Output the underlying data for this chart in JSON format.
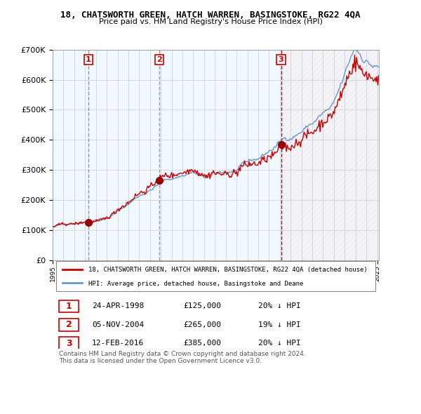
{
  "title": "18, CHATSWORTH GREEN, HATCH WARREN, BASINGSTOKE, RG22 4QA",
  "subtitle": "Price paid vs. HM Land Registry's House Price Index (HPI)",
  "xlabel": "",
  "ylabel": "",
  "ylim": [
    0,
    700000
  ],
  "yticks": [
    0,
    100000,
    200000,
    300000,
    400000,
    500000,
    600000,
    700000
  ],
  "ytick_labels": [
    "£0",
    "£100K",
    "£200K",
    "£300K",
    "£400K",
    "£500K",
    "£600K",
    "£700K"
  ],
  "sale_dates": [
    "1998-04-24",
    "2004-11-05",
    "2016-02-12"
  ],
  "sale_prices": [
    125000,
    265000,
    385000
  ],
  "sale_labels": [
    "1",
    "2",
    "3"
  ],
  "sale_info": [
    {
      "label": "1",
      "date": "24-APR-1998",
      "price": "£125,000",
      "hpi": "20% ↓ HPI"
    },
    {
      "label": "2",
      "date": "05-NOV-2004",
      "price": "£265,000",
      "hpi": "19% ↓ HPI"
    },
    {
      "label": "3",
      "date": "12-FEB-2016",
      "price": "£385,000",
      "hpi": "20% ↓ HPI"
    }
  ],
  "red_line_color": "#cc0000",
  "blue_line_color": "#6699cc",
  "sale_dot_color": "#990000",
  "vline_color_dashed": "#cc0000",
  "vline_color_gray": "#999999",
  "bg_shaded_color": "#ddeeff",
  "bg_shaded_alpha": 0.4,
  "hatch_area_color": "#aaaaaa",
  "legend_red_label": "18, CHATSWORTH GREEN, HATCH WARREN, BASINGSTOKE, RG22 4QA (detached house)",
  "legend_blue_label": "HPI: Average price, detached house, Basingstoke and Deane",
  "footer_text": "Contains HM Land Registry data © Crown copyright and database right 2024.\nThis data is licensed under the Open Government Licence v3.0.",
  "grid_color": "#cccccc",
  "background_color": "#ffffff"
}
